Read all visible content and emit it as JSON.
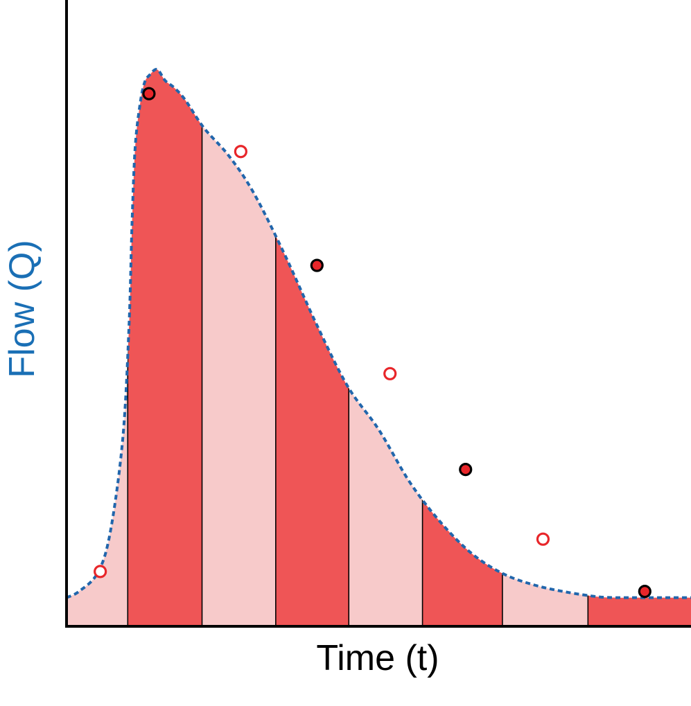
{
  "chart_data": {
    "type": "area",
    "title": "",
    "xlabel": "Time (t)",
    "ylabel": "Flow (Q)",
    "xlim": [
      0,
      100
    ],
    "ylim": [
      0,
      100
    ],
    "grid": false,
    "hydrograph_curve": {
      "x": [
        0,
        2,
        5,
        7,
        9,
        10,
        10.5,
        11,
        11.8,
        12.5,
        13.3,
        14.5,
        15.8,
        17.2,
        19,
        22,
        26,
        30,
        35,
        40,
        45,
        50,
        55,
        60,
        65,
        70,
        75,
        80,
        85,
        88,
        90,
        92,
        94,
        96,
        98,
        100
      ],
      "y": [
        4.5,
        5.5,
        8.5,
        15,
        30,
        48,
        65,
        77,
        84,
        87.3,
        88.5,
        89.4,
        87.6,
        86.5,
        84.5,
        80,
        75.5,
        69.5,
        59.5,
        48.5,
        38.5,
        31.5,
        23,
        16.5,
        11.5,
        8.3,
        6.5,
        5.4,
        4.65,
        4.5,
        4.5,
        4.5,
        4.5,
        4.5,
        4.5,
        4.5
      ]
    },
    "strip_boundaries_x": [
      9.8,
      21.7,
      33.5,
      45.2,
      57,
      69.8,
      83.5
    ],
    "strips": [
      {
        "x0": 0,
        "x1": 9.8,
        "shade": "light"
      },
      {
        "x0": 9.8,
        "x1": 21.7,
        "shade": "dark"
      },
      {
        "x0": 21.7,
        "x1": 33.5,
        "shade": "light"
      },
      {
        "x0": 33.5,
        "x1": 45.2,
        "shade": "dark"
      },
      {
        "x0": 45.2,
        "x1": 57,
        "shade": "light"
      },
      {
        "x0": 57,
        "x1": 69.8,
        "shade": "dark"
      },
      {
        "x0": 69.8,
        "x1": 83.5,
        "shade": "light"
      },
      {
        "x0": 83.5,
        "x1": 100,
        "shade": "dark"
      }
    ],
    "sample_points": [
      {
        "x": 5.4,
        "y": 8.7,
        "style": "open"
      },
      {
        "x": 13.2,
        "y": 85.5,
        "style": "filled"
      },
      {
        "x": 27.9,
        "y": 76.2,
        "style": "open"
      },
      {
        "x": 40.1,
        "y": 57.9,
        "style": "filled"
      },
      {
        "x": 51.8,
        "y": 40.5,
        "style": "open"
      },
      {
        "x": 63.9,
        "y": 25.1,
        "style": "filled"
      },
      {
        "x": 76.3,
        "y": 13.9,
        "style": "open"
      },
      {
        "x": 92.6,
        "y": 5.5,
        "style": "filled"
      }
    ]
  },
  "colors": {
    "strip_dark": "#ef5556",
    "strip_light": "#f7caca",
    "curve": "#2166ac",
    "axis": "#000000",
    "open_marker_stroke": "#e8262a",
    "filled_marker_fill": "#e8262a",
    "filled_marker_stroke": "#000000"
  }
}
